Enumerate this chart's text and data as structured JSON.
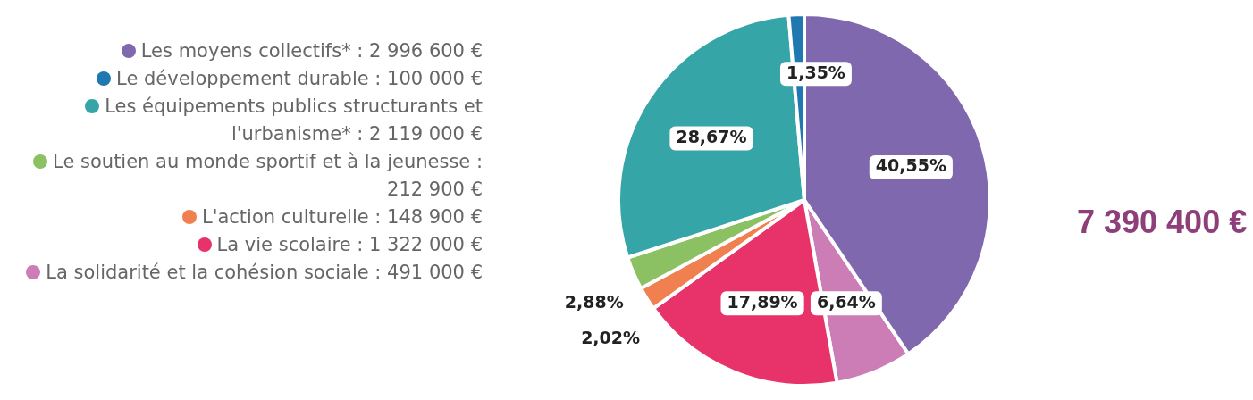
{
  "chart_data": {
    "type": "pie",
    "categories": [
      "Les moyens collectifs* : 2 996 600 €",
      "Le développement durable : 100 000 €",
      "Les équipements publics structurants et l'urbanisme* : 2 119 000 €",
      "Le soutien au monde sportif et à la jeunesse : 212 900 €",
      "L'action culturelle : 148 900 €",
      "La vie scolaire : 1 322 000 €",
      "La solidarité et la cohésion sociale : 491 000 €"
    ],
    "values": [
      40.55,
      1.35,
      28.67,
      2.88,
      2.02,
      17.89,
      6.64
    ],
    "value_labels": [
      "40,55%",
      "1,35%",
      "28,67%",
      "2,88%",
      "2,02%",
      "17,89%",
      "6,64%"
    ],
    "colors": [
      "#7f68ad",
      "#1f78b0",
      "#35a5a8",
      "#8cc163",
      "#f08050",
      "#e8336a",
      "#cc7db6"
    ],
    "legend": "left",
    "annotations": [
      "7 390 400 €"
    ]
  }
}
